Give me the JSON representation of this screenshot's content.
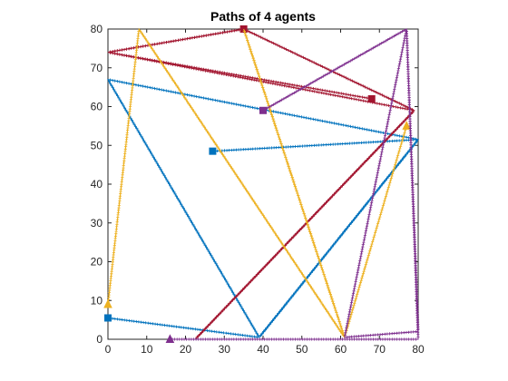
{
  "chart_data": {
    "type": "line",
    "title": "Paths of 4 agents",
    "xlabel": "",
    "ylabel": "",
    "xlim": [
      0,
      80
    ],
    "ylim": [
      0,
      80
    ],
    "xticks": [
      0,
      10,
      20,
      30,
      40,
      50,
      60,
      70,
      80
    ],
    "yticks": [
      0,
      10,
      20,
      30,
      40,
      50,
      60,
      70,
      80
    ],
    "grid": false,
    "legend": "none",
    "series": [
      {
        "color": "#0072BD",
        "start_marker": "square",
        "end_marker": "square",
        "x": [
          27,
          80,
          39,
          0,
          80,
          39,
          0
        ],
        "y": [
          48.5,
          51.5,
          0.5,
          67,
          51.5,
          0.5,
          5.5
        ]
      },
      {
        "color": "#A2142F",
        "start_marker": "square",
        "end_marker": "square",
        "x": [
          68,
          0,
          35,
          79,
          22.5,
          79,
          0,
          35
        ],
        "y": [
          62,
          74,
          80,
          59,
          0,
          59,
          74,
          80
        ]
      },
      {
        "color": "#EDB120",
        "start_marker": "triangle",
        "end_marker": "triangle",
        "x": [
          0,
          8,
          61,
          35,
          61,
          77
        ],
        "y": [
          9,
          80,
          0.5,
          80,
          0.5,
          55
        ]
      },
      {
        "color": "#7E2F8E",
        "start_marker": "triangle",
        "end_marker": "square",
        "x": [
          16,
          80,
          77,
          61,
          80,
          77,
          40
        ],
        "y": [
          0,
          0,
          80,
          0.5,
          2,
          80,
          59
        ]
      }
    ]
  }
}
